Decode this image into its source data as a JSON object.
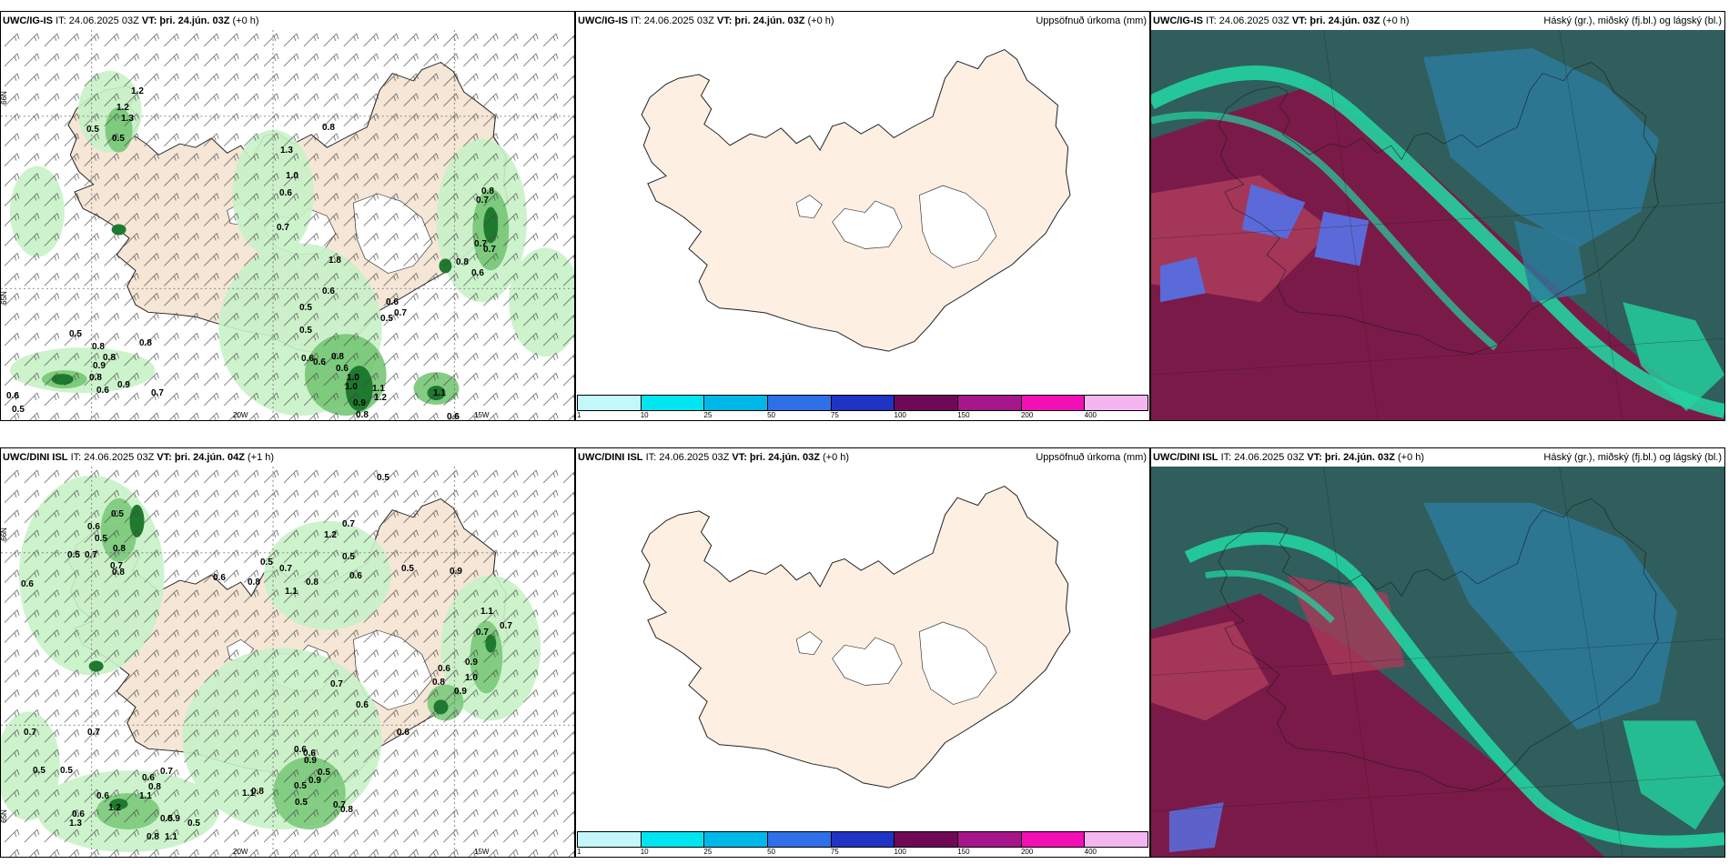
{
  "colors": {
    "land": "#f5e6d6",
    "sea": "#ffffff",
    "precip_light": "#c8f2c8",
    "precip_mid": "#76c776",
    "precip_dark": "#1e7a2e",
    "cloud_bg": "#2f5e5c",
    "cloud_high": "#23d3a0",
    "cloud_mid": "#2b7a9b",
    "cloud_low": "#7a1a48",
    "cloud_low2": "#a83a5a",
    "cloud_blue": "#5a6ad8"
  },
  "colorbar": {
    "colors": [
      "#c4f7fa",
      "#00e5f2",
      "#00b8e8",
      "#2f6fe8",
      "#1f34c2",
      "#6e0857",
      "#a6168b",
      "#f20fb6",
      "#f4b6f0"
    ],
    "ticks": [
      "1",
      "10",
      "25",
      "50",
      "75",
      "100",
      "150",
      "200",
      "400"
    ]
  },
  "panels": [
    {
      "model": "UWC/IG-IS",
      "it": "IT: 24.06.2025 03Z",
      "vt_label": "VT:",
      "vt": "þri. 24.jún. 03Z",
      "lead": "(+0 h)",
      "field": "",
      "lon_labels": [
        "20W",
        "15W"
      ],
      "lat_labels": [
        "66N",
        "65N"
      ],
      "values": [
        "1.2",
        "1.2",
        "1.3",
        "0.5",
        "0.5",
        "0.8",
        "1.3",
        "1.0",
        "0.6",
        "0.7",
        "0.8",
        "0.7",
        "0.7",
        "0.7",
        "0.6",
        "0.8",
        "1.8",
        "0.6",
        "0.5",
        "0.5",
        "0.6",
        "0.7",
        "0.5",
        "0.5",
        "0.8",
        "0.8",
        "0.6",
        "0.6",
        "0.8",
        "0.6",
        "1.0",
        "1.1",
        "1.2",
        "0.9",
        "0.8",
        "1.1",
        "1.0",
        "0.9",
        "0.9",
        "0.8",
        "0.8",
        "0.6",
        "0.7",
        "0.6",
        "0.5",
        "0.6"
      ]
    },
    {
      "model": "UWC/IG-IS",
      "it": "IT: 24.06.2025 03Z",
      "vt_label": "VT:",
      "vt": "þri. 24.jún. 03Z",
      "lead": "(+0 h)",
      "field": "Uppsöfnuð úrkoma (mm)"
    },
    {
      "model": "UWC/IG-IS",
      "it": "IT: 24.06.2025 03Z",
      "vt_label": "VT:",
      "vt": "þri. 24.jún. 03Z",
      "lead": "(+0 h)",
      "field": "Háský (gr.), miðský (fj.bl.) og lágský (bl.)"
    },
    {
      "model": "UWC/DINI ISL",
      "it": "IT: 24.06.2025 03Z",
      "vt_label": "VT:",
      "vt": "þri. 24.jún. 04Z",
      "lead": "(+1 h)",
      "field": "",
      "lon_labels": [
        "20W",
        "15W"
      ],
      "lat_labels": [
        "66N",
        "65N"
      ],
      "values": [
        "0.5",
        "0.5",
        "0.6",
        "0.5",
        "1.2",
        "0.7",
        "0.8",
        "0.7",
        "0.5",
        "0.7",
        "0.8",
        "0.6",
        "0.6",
        "0.8",
        "0.5",
        "0.7",
        "1.1",
        "0.8",
        "0.5",
        "0.6",
        "0.5",
        "0.9",
        "1.1",
        "0.7",
        "0.7",
        "0.6",
        "0.8",
        "0.9",
        "1.0",
        "0.9",
        "0.7",
        "0.6",
        "0.6",
        "0.7",
        "0.7",
        "0.5",
        "0.5",
        "0.7",
        "0.6",
        "0.8",
        "1.1",
        "1.2",
        "0.6",
        "0.8",
        "0.5",
        "0.5",
        "0.9",
        "1.1",
        "0.9",
        "0.5",
        "0.6",
        "1.3",
        "0.7",
        "0.6",
        "0.6",
        "0.9",
        "0.5",
        "0.8",
        "0.5",
        "0.8",
        "1.1"
      ]
    },
    {
      "model": "UWC/DINI ISL",
      "it": "IT: 24.06.2025 03Z",
      "vt_label": "VT:",
      "vt": "þri. 24.jún. 03Z",
      "lead": "(+0 h)",
      "field": "Uppsöfnuð úrkoma (mm)"
    },
    {
      "model": "UWC/DINI ISL",
      "it": "IT: 24.06.2025 03Z",
      "vt_label": "VT:",
      "vt": "þri. 24.jún. 03Z",
      "lead": "(+0 h)",
      "field": "Háský (gr.), miðský (fj.bl.) og lágský (bl.)"
    }
  ]
}
